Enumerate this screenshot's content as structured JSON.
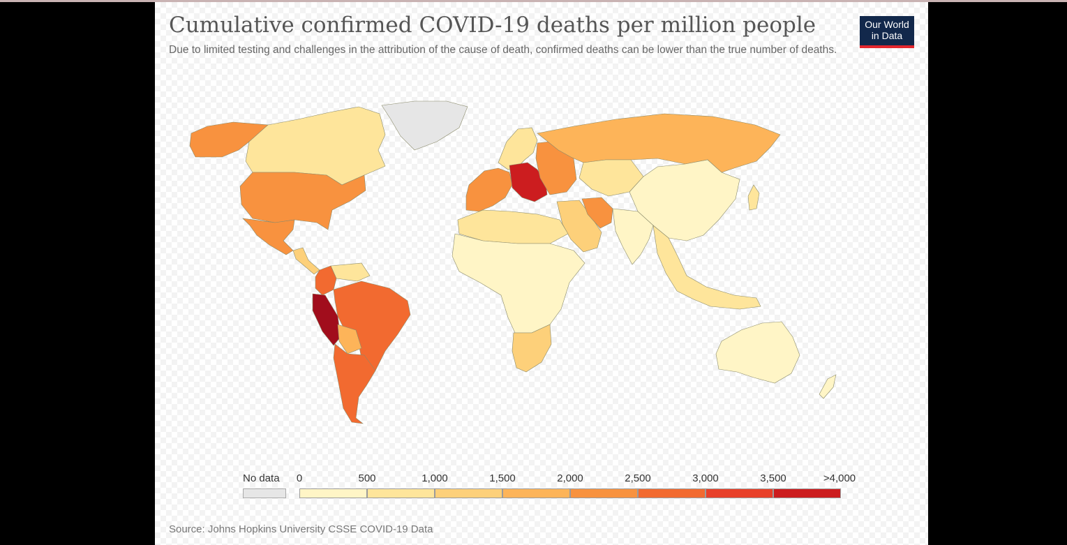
{
  "title": "Cumulative confirmed COVID-19 deaths per million people",
  "subtitle": "Due to limited testing and challenges in the attribution of the cause of death, confirmed deaths can be lower than the true number of deaths.",
  "logo": {
    "line1": "Our World",
    "line2": "in Data"
  },
  "legend": {
    "no_data_label": "No data",
    "no_data_color": "#e6e6e6",
    "ticks": [
      "0",
      "500",
      "1,000",
      "1,500",
      "2,000",
      "2,500",
      "3,000",
      "3,500",
      ">4,000"
    ],
    "colors": [
      "#fff5c6",
      "#fee59b",
      "#fdd07a",
      "#fdb459",
      "#f8923f",
      "#f26a30",
      "#e8402a",
      "#cc1d1f",
      "#a10d1c"
    ]
  },
  "source": "Source: Johns Hopkins University CSSE COVID-19 Data",
  "map_regions": [
    {
      "name": "alaska",
      "color": "#f8923f"
    },
    {
      "name": "canada",
      "color": "#fee59b"
    },
    {
      "name": "greenland",
      "color": "#e6e6e6"
    },
    {
      "name": "usa",
      "color": "#f8923f"
    },
    {
      "name": "mexico",
      "color": "#f8923f"
    },
    {
      "name": "central-america",
      "color": "#fdd07a"
    },
    {
      "name": "venezuela",
      "color": "#fee59b"
    },
    {
      "name": "colombia",
      "color": "#f26a30"
    },
    {
      "name": "peru",
      "color": "#a10d1c"
    },
    {
      "name": "brazil",
      "color": "#f26a30"
    },
    {
      "name": "bolivia",
      "color": "#fdb459"
    },
    {
      "name": "argentina-chile",
      "color": "#f26a30"
    },
    {
      "name": "scandinavia",
      "color": "#fee59b"
    },
    {
      "name": "western-europe",
      "color": "#f8923f"
    },
    {
      "name": "central-europe",
      "color": "#cc1d1f"
    },
    {
      "name": "eastern-europe",
      "color": "#f8923f"
    },
    {
      "name": "russia",
      "color": "#fdb459"
    },
    {
      "name": "central-asia",
      "color": "#fee59b"
    },
    {
      "name": "china-mongolia",
      "color": "#fff5c6"
    },
    {
      "name": "middle-east",
      "color": "#fdd07a"
    },
    {
      "name": "iran",
      "color": "#f8923f"
    },
    {
      "name": "south-asia",
      "color": "#fff5c6"
    },
    {
      "name": "southeast-asia",
      "color": "#fee59b"
    },
    {
      "name": "japan",
      "color": "#fee59b"
    },
    {
      "name": "north-africa",
      "color": "#fee59b"
    },
    {
      "name": "sub-saharan-africa",
      "color": "#fff5c6"
    },
    {
      "name": "southern-africa",
      "color": "#fdd07a"
    },
    {
      "name": "australia",
      "color": "#fff5c6"
    },
    {
      "name": "new-zealand",
      "color": "#fff5c6"
    }
  ]
}
